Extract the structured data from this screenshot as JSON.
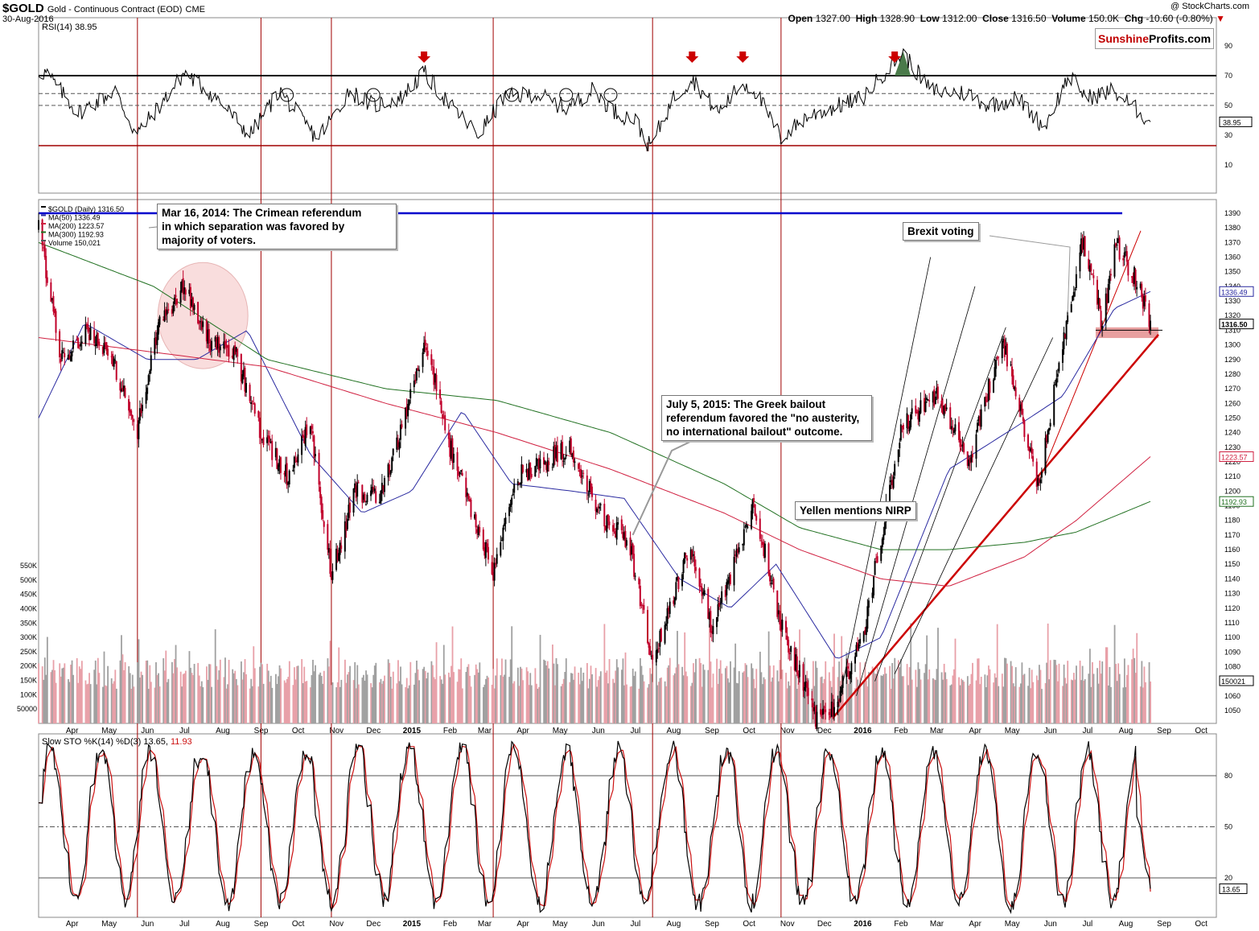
{
  "header": {
    "symbol": "$GOLD",
    "description": "Gold - Continuous Contract (EOD)",
    "exchange": "CME",
    "date": "30-Aug-2016",
    "copyright": "@ StockCharts.com",
    "ohlc": [
      {
        "label": "Open",
        "value": "1327.00"
      },
      {
        "label": "High",
        "value": "1328.90"
      },
      {
        "label": "Low",
        "value": "1312.00"
      },
      {
        "label": "Close",
        "value": "1316.50"
      },
      {
        "label": "Volume",
        "value": "150.0K"
      },
      {
        "label": "Chg",
        "value": "-10.60 (-0.80%)"
      }
    ]
  },
  "brand": {
    "part1": "Sunshine",
    "part2": "Profits.com",
    "color1": "#c00000"
  },
  "colors": {
    "price_up": "#000000",
    "price_down": "#c0002a",
    "ma50": "#2a2aa0",
    "ma200": "#d02040",
    "ma300": "#207020",
    "rsi": "#000000",
    "stoch_k": "#000000",
    "stoch_d": "#cc1111",
    "vline": "#a00000",
    "resistance": "#0000cc",
    "trend": "#cc0000",
    "volume_gray": "#a0a0a0",
    "volume_red": "#e8a0a8"
  },
  "legend": {
    "price": "$GOLD (Daily) 1316.50",
    "ma50": "MA(50) 1336.49",
    "ma200": "MA(200) 1223.57",
    "ma300": "MA(300) 1192.93",
    "volume": "Volume 150,021"
  },
  "annotations": {
    "crimea": [
      "Mar 16, 2014: The Crimean referendum",
      "in which separation was favored by",
      "majority of voters."
    ],
    "greek": [
      "July 5, 2015: The Greek bailout",
      "referendum favored the \"no austerity,",
      "no international bailout\" outcome."
    ],
    "brexit": "Brexit voting",
    "yellen": "Yellen mentions NIRP"
  },
  "chart_data": [
    {
      "type": "line",
      "panel": "rsi",
      "title": "RSI(14) 38.95",
      "current": 38.95,
      "yticks": [
        10,
        30,
        50,
        70,
        90
      ],
      "ylim": [
        5,
        95
      ],
      "reference_levels": [
        30,
        50,
        70
      ],
      "series": [
        {
          "name": "RSI(14)",
          "x": [
            "2014-03-20",
            "2014-04-15",
            "2014-05-15",
            "2014-06-01",
            "2014-06-25",
            "2014-07-10",
            "2014-08-05",
            "2014-09-01",
            "2014-09-25",
            "2014-10-25",
            "2014-11-10",
            "2014-11-20",
            "2014-12-10",
            "2015-01-01",
            "2015-01-20",
            "2015-02-10",
            "2015-03-05",
            "2015-03-25",
            "2015-04-20",
            "2015-05-15",
            "2015-06-05",
            "2015-06-25",
            "2015-07-10",
            "2015-07-22",
            "2015-08-10",
            "2015-08-25",
            "2015-09-15",
            "2015-10-05",
            "2015-10-15",
            "2015-11-05",
            "2015-11-25",
            "2015-12-15",
            "2016-01-10",
            "2016-02-05",
            "2016-02-12",
            "2016-03-05",
            "2016-04-05",
            "2016-04-20",
            "2016-05-15",
            "2016-06-05",
            "2016-06-25",
            "2016-07-10",
            "2016-07-30",
            "2016-08-15",
            "2016-08-30"
          ],
          "values": [
            72,
            45,
            60,
            30,
            55,
            72,
            55,
            30,
            60,
            28,
            45,
            60,
            50,
            55,
            72,
            50,
            30,
            55,
            58,
            48,
            60,
            45,
            40,
            22,
            55,
            68,
            45,
            65,
            60,
            28,
            42,
            48,
            55,
            80,
            85,
            60,
            58,
            50,
            55,
            35,
            70,
            55,
            60,
            50,
            38.95
          ]
        }
      ],
      "markers": {
        "down_arrows": [
          "2015-01-20",
          "2015-08-25",
          "2015-10-05",
          "2016-02-05"
        ],
        "circles": [
          "2014-10-01",
          "2014-12-10",
          "2015-04-01",
          "2015-05-15",
          "2015-06-20"
        ]
      }
    },
    {
      "type": "candlestick",
      "panel": "price",
      "title": "$GOLD (Daily) 1316.50",
      "ylim": [
        1040,
        1395
      ],
      "yticks": [
        1050,
        1060,
        1070,
        1080,
        1090,
        1100,
        1110,
        1120,
        1130,
        1140,
        1150,
        1160,
        1170,
        1180,
        1190,
        1200,
        1210,
        1220,
        1230,
        1240,
        1250,
        1260,
        1270,
        1280,
        1290,
        1300,
        1310,
        1320,
        1330,
        1340,
        1350,
        1360,
        1370,
        1380,
        1390
      ],
      "x_labels": [
        "Apr",
        "May",
        "Jun",
        "Jul",
        "Aug",
        "Sep",
        "Oct",
        "Nov",
        "Dec",
        "2015",
        "Feb",
        "Mar",
        "Apr",
        "May",
        "Jun",
        "Jul",
        "Aug",
        "Sep",
        "Oct",
        "Nov",
        "Dec",
        "2016",
        "Feb",
        "Mar",
        "Apr",
        "May",
        "Jun",
        "Jul",
        "Aug",
        "Sep",
        "Oct"
      ],
      "price_keypoints": {
        "x": [
          "2014-03-14",
          "2014-04-01",
          "2014-04-20",
          "2014-05-10",
          "2014-06-02",
          "2014-06-20",
          "2014-07-10",
          "2014-08-01",
          "2014-08-20",
          "2014-09-10",
          "2014-10-01",
          "2014-10-20",
          "2014-11-06",
          "2014-11-25",
          "2014-12-15",
          "2015-01-22",
          "2015-02-10",
          "2015-03-17",
          "2015-04-06",
          "2015-05-18",
          "2015-06-15",
          "2015-07-05",
          "2015-07-24",
          "2015-08-24",
          "2015-09-10",
          "2015-10-14",
          "2015-11-05",
          "2015-12-03",
          "2015-12-17",
          "2016-01-10",
          "2016-02-11",
          "2016-03-10",
          "2016-04-05",
          "2016-05-02",
          "2016-05-31",
          "2016-06-24",
          "2016-07-06",
          "2016-07-22",
          "2016-08-02",
          "2016-08-18",
          "2016-08-30"
        ],
        "values": [
          1380,
          1290,
          1310,
          1295,
          1242,
          1315,
          1340,
          1300,
          1295,
          1240,
          1210,
          1245,
          1142,
          1200,
          1195,
          1300,
          1230,
          1145,
          1210,
          1230,
          1180,
          1165,
          1085,
          1165,
          1105,
          1190,
          1110,
          1045,
          1050,
          1100,
          1245,
          1265,
          1220,
          1305,
          1205,
          1320,
          1370,
          1315,
          1370,
          1345,
          1316.5
        ]
      },
      "moving_averages": [
        {
          "name": "MA(50)",
          "last": 1336.49,
          "x": [
            "2014-03-14",
            "2014-04-20",
            "2014-06-10",
            "2014-07-20",
            "2014-08-30",
            "2014-10-20",
            "2014-12-01",
            "2015-01-10",
            "2015-02-20",
            "2015-04-01",
            "2015-05-20",
            "2015-07-01",
            "2015-08-15",
            "2015-09-25",
            "2015-11-01",
            "2015-12-20",
            "2016-01-25",
            "2016-03-20",
            "2016-05-15",
            "2016-06-20",
            "2016-08-01",
            "2016-08-30"
          ],
          "values": [
            1250,
            1315,
            1290,
            1290,
            1310,
            1225,
            1185,
            1200,
            1255,
            1205,
            1200,
            1195,
            1140,
            1120,
            1150,
            1085,
            1100,
            1215,
            1245,
            1265,
            1325,
            1336.49
          ]
        },
        {
          "name": "MA(200)",
          "last": 1223.57,
          "x": [
            "2014-03-14",
            "2014-06-15",
            "2014-09-15",
            "2014-12-20",
            "2015-03-20",
            "2015-06-20",
            "2015-09-20",
            "2015-11-20",
            "2016-01-25",
            "2016-03-20",
            "2016-05-20",
            "2016-07-01",
            "2016-08-30"
          ],
          "values": [
            1305,
            1295,
            1285,
            1260,
            1240,
            1215,
            1185,
            1160,
            1140,
            1135,
            1155,
            1180,
            1223.57
          ]
        },
        {
          "name": "MA(300)",
          "last": 1192.93,
          "x": [
            "2014-03-14",
            "2014-06-15",
            "2014-09-15",
            "2014-12-20",
            "2015-03-20",
            "2015-06-20",
            "2015-09-20",
            "2015-11-20",
            "2016-01-25",
            "2016-03-20",
            "2016-05-20",
            "2016-07-01",
            "2016-08-30"
          ],
          "values": [
            1370,
            1340,
            1290,
            1270,
            1262,
            1240,
            1205,
            1175,
            1160,
            1160,
            1165,
            1172,
            1192.93
          ]
        }
      ],
      "resistance_level": 1390,
      "support_zone": [
        1308,
        1312
      ],
      "current_labels": {
        "ma50": "1336.49",
        "close": "1316.50",
        "ma200": "1223.57",
        "ma300": "1192.93",
        "volume": "150021"
      }
    },
    {
      "type": "bar",
      "panel": "volume",
      "title": "Volume 150,021",
      "yticks": [
        "50000",
        "100K",
        "150K",
        "200K",
        "250K",
        "300K",
        "350K",
        "400K",
        "450K",
        "500K",
        "550K"
      ],
      "current": 150021
    },
    {
      "type": "line",
      "panel": "stochastic",
      "title": "Slow STO %K(14) %D(3) 13.65, 11.93",
      "title_parts": {
        "prefix": "Slow STO %K(14) %D(3) 13.65, ",
        "d_value": "11.93"
      },
      "current_label": "13.65",
      "yticks": [
        20,
        50,
        80
      ],
      "ylim": [
        -15,
        110
      ],
      "series": [
        {
          "name": "%K(14)",
          "last": 13.65
        },
        {
          "name": "%D(3)",
          "last": 11.93
        }
      ],
      "x_labels": [
        "Apr",
        "May",
        "Jun",
        "Jul",
        "Aug",
        "Sep",
        "Oct",
        "Nov",
        "Dec",
        "2015",
        "Feb",
        "Mar",
        "Apr",
        "May",
        "Jun",
        "Jul",
        "Aug",
        "Sep",
        "Oct",
        "Nov",
        "Dec",
        "2016",
        "Feb",
        "Mar",
        "Apr",
        "May",
        "Jun",
        "Jul",
        "Aug",
        "Sep",
        "Oct"
      ]
    }
  ]
}
